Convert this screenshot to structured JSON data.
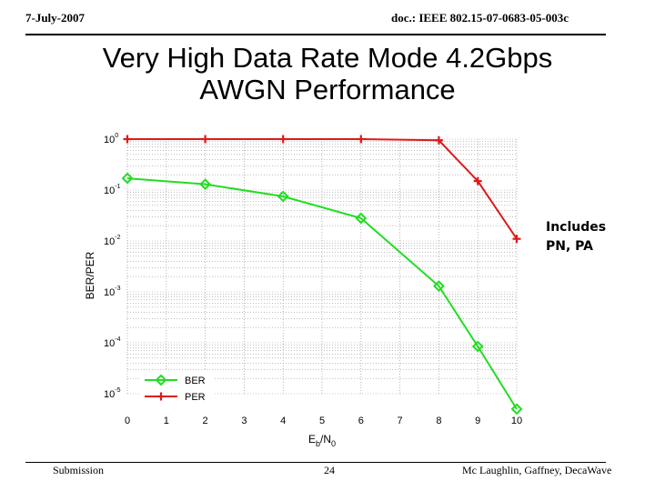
{
  "header": {
    "date": "7-July-2007",
    "doc": "doc.: IEEE 802.15-07-0683-05-003c"
  },
  "title": {
    "line1": "Very High Data Rate Mode 4.2Gbps",
    "line2": "AWGN Performance"
  },
  "note": {
    "line1": "Includes",
    "line2": "PN, PA"
  },
  "footer": {
    "left": "Submission",
    "page": "24",
    "right": "Mc Laughlin, Gaffney,  DecaWave"
  },
  "colors": {
    "ber": "#22dd22",
    "per": "#dd1a1a",
    "grid": "#9a9a9a"
  },
  "chart_data": {
    "type": "line",
    "title": "",
    "xlabel": "E_b/N_0",
    "ylabel": "BER/PER",
    "xscale": "linear",
    "yscale": "log",
    "xlim": [
      0,
      10
    ],
    "ylim": [
      1e-05,
      1
    ],
    "xticks": [
      0,
      1,
      2,
      3,
      4,
      5,
      6,
      7,
      8,
      9,
      10
    ],
    "yticks": [
      {
        "mantissa": "10",
        "exp": "0",
        "value": 1
      },
      {
        "mantissa": "10",
        "exp": "-1",
        "value": 0.1
      },
      {
        "mantissa": "10",
        "exp": "-2",
        "value": 0.01
      },
      {
        "mantissa": "10",
        "exp": "-3",
        "value": 0.001
      },
      {
        "mantissa": "10",
        "exp": "-4",
        "value": 0.0001
      },
      {
        "mantissa": "10",
        "exp": "-5",
        "value": 1e-05
      }
    ],
    "grid": true,
    "legend": "bottom-left",
    "series": [
      {
        "name": "BER",
        "marker": "diamond",
        "x": [
          0,
          2,
          4,
          6,
          8,
          9,
          10
        ],
        "y": [
          0.17,
          0.13,
          0.075,
          0.028,
          0.0013,
          8.5e-05,
          5e-06
        ]
      },
      {
        "name": "PER",
        "marker": "plus",
        "x": [
          0,
          2,
          4,
          6,
          8,
          9,
          10
        ],
        "y": [
          1,
          1,
          1,
          1,
          0.95,
          0.15,
          0.011
        ]
      }
    ]
  }
}
